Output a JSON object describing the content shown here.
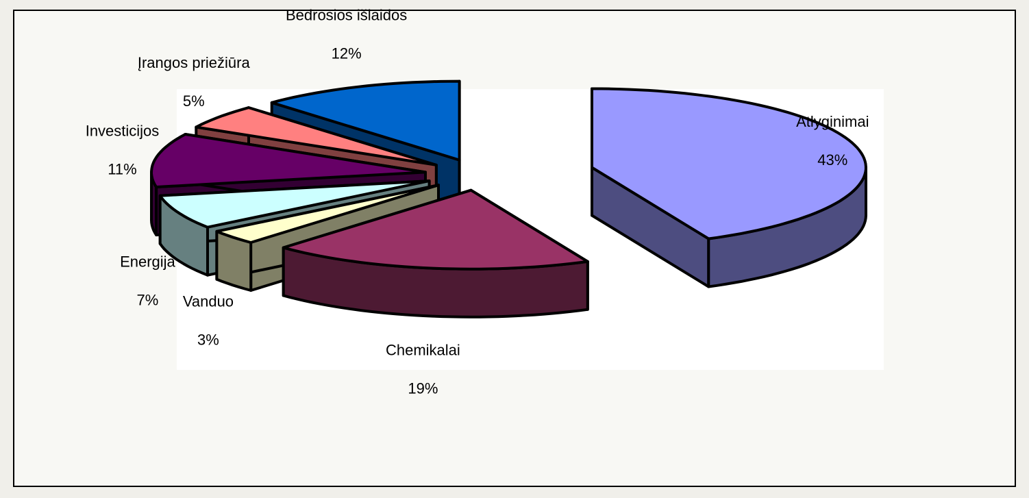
{
  "chart_data": {
    "type": "pie3d",
    "categories": [
      "Atlyginimai",
      "Chemikalai",
      "Vanduo",
      "Energija",
      "Investicijos",
      "Įrangos priežiūra",
      "Bedrosios išlaidos"
    ],
    "values": [
      43,
      19,
      3,
      7,
      11,
      5,
      12
    ],
    "value_labels": [
      "43%",
      "19%",
      "3%",
      "7%",
      "11%",
      "5%",
      "12%"
    ],
    "colors": [
      "#9999ff",
      "#993366",
      "#ffffcc",
      "#ccffff",
      "#660066",
      "#ff8080",
      "#0066cc"
    ]
  }
}
